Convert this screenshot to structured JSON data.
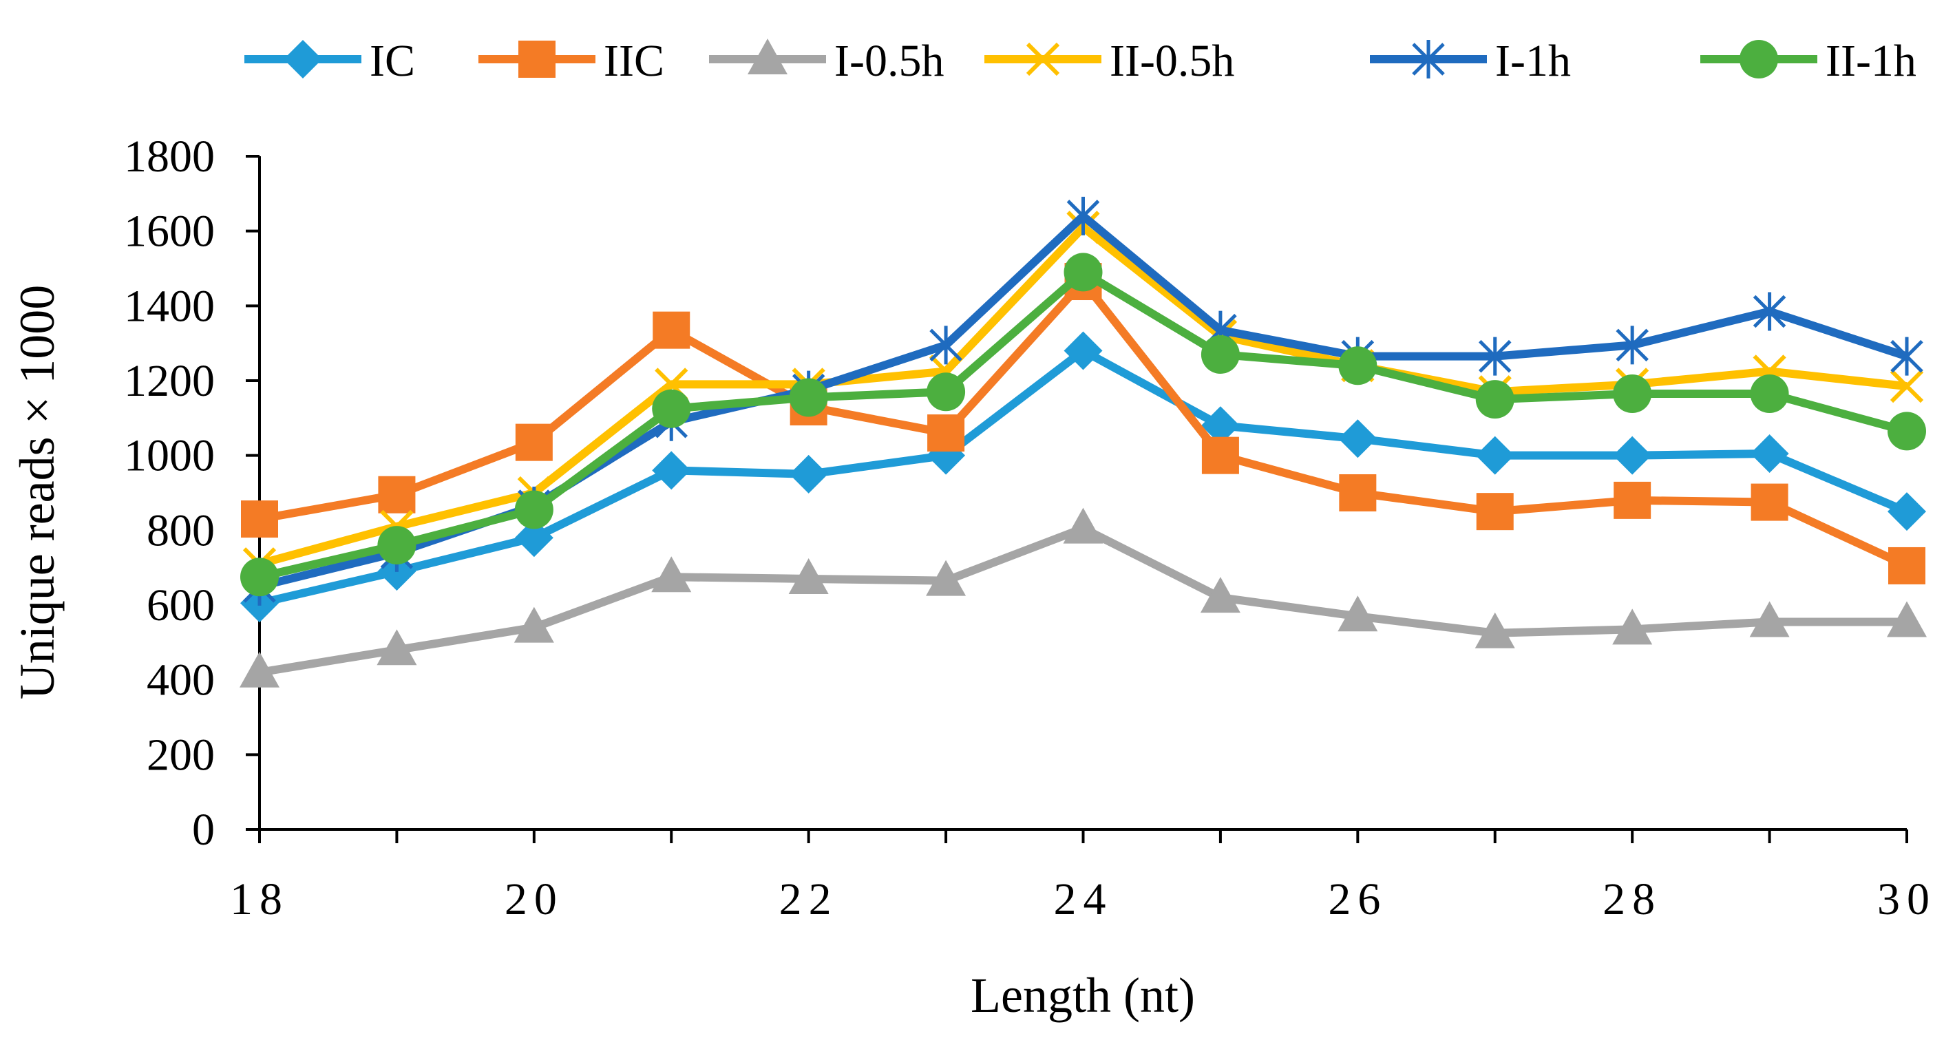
{
  "chart_data": {
    "type": "line",
    "title": "",
    "xlabel": "Length (nt)",
    "ylabel": "Unique reads × 1000",
    "x": [
      18,
      19,
      20,
      21,
      22,
      23,
      24,
      25,
      26,
      27,
      28,
      29,
      30
    ],
    "x_tick_labels": [
      "18",
      "20",
      "22",
      "24",
      "26",
      "28",
      "30"
    ],
    "x_tick_values": [
      18,
      20,
      22,
      24,
      26,
      28,
      30
    ],
    "xlim": [
      18,
      30
    ],
    "ylim": [
      0,
      1800
    ],
    "y_tick_values": [
      0,
      200,
      400,
      600,
      800,
      1000,
      1200,
      1400,
      1600,
      1800
    ],
    "y_tick_labels": [
      "0",
      "200",
      "400",
      "600",
      "800",
      "1000",
      "1200",
      "1400",
      "1600",
      "1800"
    ],
    "grid": false,
    "legend_position": "top",
    "series": [
      {
        "name": "IC",
        "color": "#1F9BD7",
        "marker": "diamond",
        "values": [
          605,
          690,
          780,
          960,
          950,
          1000,
          1280,
          1080,
          1045,
          1000,
          1000,
          1005,
          850
        ]
      },
      {
        "name": "IIC",
        "color": "#F47B25",
        "marker": "square",
        "values": [
          830,
          895,
          1035,
          1335,
          1130,
          1060,
          1465,
          1000,
          900,
          850,
          880,
          875,
          705
        ]
      },
      {
        "name": "I-0.5h",
        "color": "#A5A5A5",
        "marker": "triangle",
        "values": [
          420,
          480,
          540,
          675,
          670,
          665,
          805,
          620,
          570,
          525,
          535,
          555,
          555
        ]
      },
      {
        "name": "II-0.5h",
        "color": "#FFC000",
        "marker": "x",
        "values": [
          710,
          810,
          900,
          1190,
          1190,
          1225,
          1610,
          1320,
          1240,
          1170,
          1190,
          1225,
          1185
        ]
      },
      {
        "name": "I-1h",
        "color": "#1F6BBF",
        "marker": "asterisk",
        "values": [
          650,
          740,
          865,
          1090,
          1175,
          1295,
          1640,
          1335,
          1265,
          1265,
          1295,
          1385,
          1265
        ]
      },
      {
        "name": "II-1h",
        "color": "#4CAF3F",
        "marker": "circle",
        "values": [
          675,
          760,
          855,
          1125,
          1155,
          1170,
          1490,
          1270,
          1240,
          1150,
          1165,
          1165,
          1065
        ]
      }
    ]
  }
}
